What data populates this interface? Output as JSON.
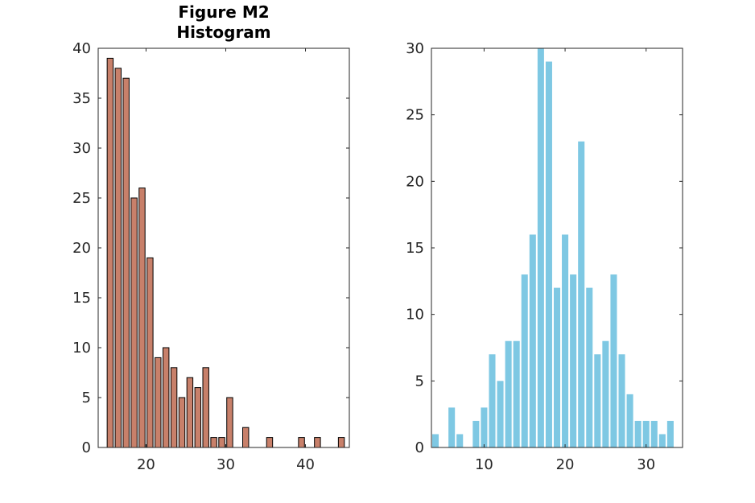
{
  "chart_data": [
    {
      "type": "bar",
      "title": [
        "Figure M2",
        "Histogram"
      ],
      "xlabel": "",
      "ylabel": "",
      "xlim": [
        14,
        45.5
      ],
      "ylim": [
        0,
        40
      ],
      "xticks": [
        20,
        30,
        40
      ],
      "yticks": [
        0,
        5,
        10,
        15,
        20,
        25,
        30,
        35,
        40
      ],
      "grid": false,
      "bar_color": "#c8806a",
      "bar_edge_color": "#000000",
      "x": [
        15.5,
        16.5,
        17.5,
        18.5,
        19.5,
        20.5,
        21.5,
        22.5,
        23.5,
        24.5,
        25.5,
        26.5,
        27.5,
        28.5,
        29.5,
        30.5,
        31.5,
        32.5,
        33.5,
        34.5,
        35.5,
        36.5,
        37.5,
        38.5,
        39.5,
        40.5,
        41.5,
        42.5,
        43.5,
        44.5
      ],
      "values": [
        39,
        38,
        37,
        25,
        26,
        19,
        9,
        10,
        8,
        5,
        7,
        6,
        8,
        1,
        1,
        5,
        0,
        2,
        0,
        0,
        1,
        0,
        0,
        0,
        1,
        0,
        1,
        0,
        0,
        1
      ]
    },
    {
      "type": "bar",
      "title": "",
      "xlabel": "",
      "ylabel": "",
      "xlim": [
        3.5,
        34.5
      ],
      "ylim": [
        0,
        30
      ],
      "xticks": [
        10,
        20,
        30
      ],
      "yticks": [
        0,
        5,
        10,
        15,
        20,
        25,
        30
      ],
      "grid": false,
      "bar_color": "#7ec8e3",
      "bar_edge_color": "none",
      "x": [
        4,
        5,
        6,
        7,
        8,
        9,
        10,
        11,
        12,
        13,
        14,
        15,
        16,
        17,
        18,
        19,
        20,
        21,
        22,
        23,
        24,
        25,
        26,
        27,
        28,
        29,
        30,
        31,
        32,
        33,
        34
      ],
      "values": [
        1,
        0,
        3,
        1,
        0,
        2,
        3,
        7,
        5,
        8,
        8,
        13,
        16,
        30,
        29,
        12,
        16,
        13,
        23,
        12,
        7,
        8,
        13,
        7,
        4,
        2,
        2,
        2,
        1,
        2,
        0
      ]
    }
  ]
}
